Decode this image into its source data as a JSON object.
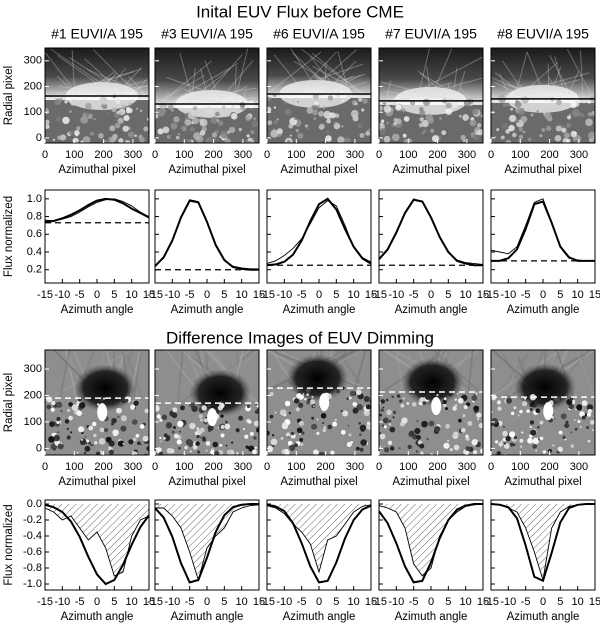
{
  "headings": [
    "Inital EUV Flux before CME",
    "Difference Images of EUV Dimming"
  ],
  "chart_data": [
    {
      "type": "image",
      "title": "#1 EUVI/A 195",
      "xlabel": "Azimuthal pixel",
      "ylabel": "Radial pixel",
      "xlim": [
        0,
        355
      ],
      "ylim": [
        -20,
        350
      ],
      "xticks": [
        0,
        100,
        200,
        300
      ],
      "yticks": [
        0,
        100,
        200,
        300
      ],
      "ytick_labels": true,
      "hline": 163,
      "line_color": "#000000",
      "line_dash": false
    },
    {
      "type": "image",
      "title": "#3 EUVI/A 195",
      "xlabel": "Azimuthal pixel",
      "xlim": [
        0,
        355
      ],
      "ylim": [
        -20,
        350
      ],
      "xticks": [
        0,
        100,
        200,
        300
      ],
      "yticks": [
        0,
        100,
        200,
        300
      ],
      "ytick_labels": false,
      "hline": 132,
      "line_color": "#000000",
      "line_dash": false
    },
    {
      "type": "image",
      "title": "#6 EUVI/A 195",
      "xlabel": "Azimuthal pixel",
      "xlim": [
        0,
        355
      ],
      "ylim": [
        -20,
        350
      ],
      "xticks": [
        0,
        100,
        200,
        300
      ],
      "yticks": [
        0,
        100,
        200,
        300
      ],
      "ytick_labels": false,
      "hline": 171,
      "line_color": "#000000",
      "line_dash": false
    },
    {
      "type": "image",
      "title": "#7 EUVI/A 195",
      "xlabel": "Azimuthal pixel",
      "xlim": [
        0,
        355
      ],
      "ylim": [
        -20,
        350
      ],
      "xticks": [
        0,
        100,
        200,
        300
      ],
      "yticks": [
        0,
        100,
        200,
        300
      ],
      "ytick_labels": false,
      "hline": 144,
      "line_color": "#000000",
      "line_dash": false
    },
    {
      "type": "image",
      "title": "#8 EUVI/A 195",
      "xlabel": "Azimuthal pixel",
      "xlim": [
        0,
        355
      ],
      "ylim": [
        -20,
        350
      ],
      "xticks": [
        0,
        100,
        200,
        300
      ],
      "yticks": [
        0,
        100,
        200,
        300
      ],
      "ytick_labels": false,
      "hline": 152,
      "line_color": "#000000",
      "line_dash": false
    },
    {
      "type": "line",
      "xlabel": "Azimuth angle",
      "ylabel": "Flux normalized",
      "xlim": [
        -15,
        15
      ],
      "ylim": [
        0.05,
        1.1
      ],
      "xticks": [
        -15,
        -10,
        -5,
        0,
        5,
        10,
        15
      ],
      "yticks": [
        0.2,
        0.4,
        0.6,
        0.8,
        {
          "value": 1,
          "label": "1.0"
        }
      ],
      "ytick_labels": true,
      "baseline": 0.73,
      "x": [
        -15,
        -12.5,
        -10,
        -7.5,
        -5,
        -2.5,
        0,
        2.5,
        5,
        7.5,
        10,
        12.5,
        15
      ],
      "series": [
        {
          "color": "#000000",
          "values": [
            0.74,
            0.75,
            0.78,
            0.82,
            0.87,
            0.93,
            0.98,
            1.0,
            0.99,
            0.95,
            0.89,
            0.84,
            0.79
          ]
        },
        {
          "color": "#000000",
          "values": [
            0.76,
            0.75,
            0.77,
            0.8,
            0.85,
            0.91,
            0.96,
            0.99,
            1.0,
            0.97,
            0.92,
            0.85,
            0.8
          ]
        }
      ]
    },
    {
      "type": "line",
      "xlabel": "Azimuth angle",
      "xlim": [
        -15,
        15
      ],
      "ylim": [
        0.05,
        1.1
      ],
      "xticks": [
        -15,
        -10,
        -5,
        0,
        5,
        10,
        15
      ],
      "yticks": [
        0.2,
        0.4,
        0.6,
        0.8,
        {
          "value": 1,
          "label": "1.0"
        }
      ],
      "ytick_labels": false,
      "baseline": 0.2,
      "x": [
        -15,
        -12.5,
        -10,
        -7.5,
        -5,
        -2.5,
        0,
        2.5,
        5,
        7.5,
        10,
        12.5,
        15
      ],
      "series": [
        {
          "color": "#000000",
          "values": [
            0.24,
            0.34,
            0.53,
            0.79,
            0.98,
            0.96,
            0.74,
            0.48,
            0.31,
            0.23,
            0.21,
            0.2,
            0.2
          ]
        },
        {
          "color": "#000000",
          "values": [
            0.25,
            0.33,
            0.52,
            0.8,
            0.99,
            0.97,
            0.75,
            0.47,
            0.3,
            0.24,
            0.22,
            0.21,
            0.21
          ]
        }
      ]
    },
    {
      "type": "line",
      "xlabel": "Azimuth angle",
      "xlim": [
        -15,
        15
      ],
      "ylim": [
        0.05,
        1.1
      ],
      "xticks": [
        -15,
        -10,
        -5,
        0,
        5,
        10,
        15
      ],
      "yticks": [
        0.2,
        0.4,
        0.6,
        0.8,
        {
          "value": 1,
          "label": "1.0"
        }
      ],
      "ytick_labels": false,
      "baseline": 0.25,
      "x": [
        -15,
        -12.5,
        -10,
        -7.5,
        -5,
        -2.5,
        0,
        2.5,
        5,
        7.5,
        10,
        12.5,
        15
      ],
      "series": [
        {
          "color": "#000000",
          "values": [
            0.25,
            0.26,
            0.29,
            0.37,
            0.53,
            0.75,
            0.94,
            1.0,
            0.88,
            0.66,
            0.46,
            0.33,
            0.28
          ]
        },
        {
          "color": "#000000",
          "values": [
            0.27,
            0.3,
            0.36,
            0.44,
            0.55,
            0.72,
            0.9,
            0.98,
            0.92,
            0.7,
            0.45,
            0.32,
            0.26
          ]
        }
      ]
    },
    {
      "type": "line",
      "xlabel": "Azimuth angle",
      "xlim": [
        -15,
        15
      ],
      "ylim": [
        0.05,
        1.1
      ],
      "xticks": [
        -15,
        -10,
        -5,
        0,
        5,
        10,
        15
      ],
      "yticks": [
        0.2,
        0.4,
        0.6,
        0.8,
        {
          "value": 1,
          "label": "1.0"
        }
      ],
      "ytick_labels": false,
      "baseline": 0.25,
      "x": [
        -15,
        -12.5,
        -10,
        -7.5,
        -5,
        -2.5,
        0,
        2.5,
        5,
        7.5,
        10,
        12.5,
        15
      ],
      "series": [
        {
          "color": "#000000",
          "values": [
            0.32,
            0.43,
            0.62,
            0.84,
            0.99,
            0.97,
            0.79,
            0.57,
            0.4,
            0.3,
            0.27,
            0.25,
            0.25
          ]
        },
        {
          "color": "#000000",
          "values": [
            0.31,
            0.42,
            0.61,
            0.85,
            1.0,
            0.97,
            0.8,
            0.56,
            0.39,
            0.31,
            0.28,
            0.27,
            0.26
          ]
        }
      ]
    },
    {
      "type": "line",
      "xlabel": "Azimuth angle",
      "xlim": [
        -15,
        15
      ],
      "ylim": [
        0.05,
        1.1
      ],
      "xticks": [
        -15,
        -10,
        -5,
        0,
        5,
        10,
        15
      ],
      "yticks": [
        0.2,
        0.4,
        0.6,
        0.8,
        {
          "value": 1,
          "label": "1.0"
        }
      ],
      "ytick_labels": false,
      "baseline": 0.3,
      "x": [
        -15,
        -12.5,
        -10,
        -7.5,
        -5,
        -2.5,
        0,
        2.5,
        5,
        7.5,
        10,
        12.5,
        15
      ],
      "series": [
        {
          "color": "#000000",
          "values": [
            0.3,
            0.3,
            0.33,
            0.43,
            0.66,
            0.94,
            0.97,
            0.73,
            0.46,
            0.34,
            0.3,
            0.3,
            0.3
          ]
        },
        {
          "color": "#000000",
          "values": [
            0.42,
            0.4,
            0.38,
            0.46,
            0.7,
            0.96,
            1.0,
            0.74,
            0.45,
            0.33,
            0.31,
            0.3,
            0.3
          ]
        }
      ]
    },
    {
      "type": "image",
      "xlabel": "Azimuthal pixel",
      "ylabel": "Radial pixel",
      "xlim": [
        0,
        355
      ],
      "ylim": [
        -25,
        372
      ],
      "xticks": [
        0,
        100,
        200,
        300
      ],
      "yticks": [
        0,
        100,
        200,
        300
      ],
      "ytick_labels": true,
      "hline": 190,
      "line_color": "#ffffff",
      "line_dash": true
    },
    {
      "type": "image",
      "xlabel": "Azimuthal pixel",
      "xlim": [
        0,
        355
      ],
      "ylim": [
        -25,
        372
      ],
      "xticks": [
        0,
        100,
        200,
        300
      ],
      "yticks": [
        0,
        100,
        200,
        300
      ],
      "ytick_labels": false,
      "hline": 171,
      "line_color": "#ffffff",
      "line_dash": true
    },
    {
      "type": "image",
      "xlabel": "Azimuthal pixel",
      "xlim": [
        0,
        355
      ],
      "ylim": [
        -25,
        372
      ],
      "xticks": [
        0,
        100,
        200,
        300
      ],
      "yticks": [
        0,
        100,
        200,
        300
      ],
      "ytick_labels": false,
      "hline": 228,
      "line_color": "#ffffff",
      "line_dash": true
    },
    {
      "type": "image",
      "xlabel": "Azimuthal pixel",
      "xlim": [
        0,
        355
      ],
      "ylim": [
        -25,
        372
      ],
      "xticks": [
        0,
        100,
        200,
        300
      ],
      "yticks": [
        0,
        100,
        200,
        300
      ],
      "ytick_labels": false,
      "hline": 213,
      "line_color": "#ffffff",
      "line_dash": true
    },
    {
      "type": "image",
      "xlabel": "Azimuthal pixel",
      "xlim": [
        0,
        355
      ],
      "ylim": [
        -25,
        372
      ],
      "xticks": [
        0,
        100,
        200,
        300
      ],
      "yticks": [
        0,
        100,
        200,
        300
      ],
      "ytick_labels": false,
      "hline": 194,
      "line_color": "#ffffff",
      "line_dash": true
    },
    {
      "type": "line",
      "xlabel": "Azimuth angle",
      "ylabel": "Flux normalized",
      "xlim": [
        -15,
        15
      ],
      "ylim": [
        -1.075,
        0.05
      ],
      "xticks": [
        -15,
        -10,
        -5,
        0,
        5,
        10,
        15
      ],
      "yticks": [
        {
          "value": 0,
          "label": "0.0"
        },
        -0.2,
        -0.4,
        -0.6,
        -0.8,
        {
          "value": -1,
          "label": "-1.0"
        }
      ],
      "ytick_labels": true,
      "x": [
        -15,
        -12.5,
        -10,
        -7.5,
        -5,
        -2.5,
        0,
        2.5,
        5,
        7.5,
        10,
        12.5,
        15
      ],
      "series": [
        {
          "color": "#000000",
          "values": [
            -0.01,
            -0.04,
            -0.1,
            -0.22,
            -0.41,
            -0.66,
            -0.88,
            -1.0,
            -0.95,
            -0.76,
            -0.51,
            -0.29,
            -0.14
          ]
        },
        {
          "color": "#000000",
          "hatched": true,
          "values": [
            -0.05,
            -0.1,
            -0.2,
            -0.15,
            -0.3,
            -0.45,
            -0.35,
            -0.55,
            -0.9,
            -0.85,
            -0.4,
            -0.2,
            -0.15
          ]
        }
      ]
    },
    {
      "type": "line",
      "xlabel": "Azimuth angle",
      "xlim": [
        -15,
        15
      ],
      "ylim": [
        -1.075,
        0.05
      ],
      "xticks": [
        -15,
        -10,
        -5,
        0,
        5,
        10,
        15
      ],
      "yticks": [
        {
          "value": 0,
          "label": "0.0"
        },
        -0.2,
        -0.4,
        -0.6,
        -0.8,
        {
          "value": -1,
          "label": "-1.0"
        }
      ],
      "ytick_labels": false,
      "x": [
        -15,
        -12.5,
        -10,
        -7.5,
        -5,
        -2.5,
        0,
        2.5,
        5,
        7.5,
        10,
        12.5,
        15
      ],
      "series": [
        {
          "color": "#000000",
          "values": [
            -0.05,
            -0.17,
            -0.41,
            -0.74,
            -0.98,
            -0.95,
            -0.67,
            -0.35,
            -0.14,
            -0.04,
            -0.01,
            0,
            0
          ]
        },
        {
          "color": "#000000",
          "hatched": true,
          "values": [
            -0.05,
            -0.05,
            -0.15,
            -0.3,
            -0.6,
            -0.95,
            -0.55,
            -0.4,
            -0.3,
            -0.1,
            -0.05,
            -0.02,
            -0.01
          ]
        }
      ]
    },
    {
      "type": "line",
      "xlabel": "Azimuth angle",
      "xlim": [
        -15,
        15
      ],
      "ylim": [
        -1.075,
        0.05
      ],
      "xticks": [
        -15,
        -10,
        -5,
        0,
        5,
        10,
        15
      ],
      "yticks": [
        {
          "value": 0,
          "label": "0.0"
        },
        -0.2,
        -0.4,
        -0.6,
        -0.8,
        {
          "value": -1,
          "label": "-1.0"
        }
      ],
      "ytick_labels": false,
      "x": [
        -15,
        -12.5,
        -10,
        -7.5,
        -5,
        -2.5,
        0,
        2.5,
        5,
        7.5,
        10,
        12.5,
        15
      ],
      "series": [
        {
          "color": "#000000",
          "values": [
            -0.01,
            -0.03,
            -0.09,
            -0.24,
            -0.49,
            -0.78,
            -0.98,
            -0.96,
            -0.73,
            -0.43,
            -0.2,
            -0.07,
            -0.02
          ]
        },
        {
          "color": "#000000",
          "hatched": true,
          "values": [
            -0.02,
            -0.05,
            -0.12,
            -0.25,
            -0.35,
            -0.5,
            -0.85,
            -0.45,
            -0.4,
            -0.25,
            -0.1,
            -0.03,
            -0.01
          ]
        }
      ]
    },
    {
      "type": "line",
      "xlabel": "Azimuth angle",
      "xlim": [
        -15,
        15
      ],
      "ylim": [
        -1.075,
        0.05
      ],
      "xticks": [
        -15,
        -10,
        -5,
        0,
        5,
        10,
        15
      ],
      "yticks": [
        {
          "value": 0,
          "label": "0.0"
        },
        -0.2,
        -0.4,
        -0.6,
        -0.8,
        {
          "value": -1,
          "label": "-1.0"
        }
      ],
      "ytick_labels": false,
      "x": [
        -15,
        -12.5,
        -10,
        -7.5,
        -5,
        -2.5,
        0,
        2.5,
        5,
        7.5,
        10,
        12.5,
        15
      ],
      "series": [
        {
          "color": "#000000",
          "values": [
            -0.09,
            -0.24,
            -0.49,
            -0.78,
            -0.98,
            -0.96,
            -0.73,
            -0.43,
            -0.2,
            -0.07,
            -0.02,
            0,
            0
          ]
        },
        {
          "color": "#000000",
          "hatched": true,
          "values": [
            -0.02,
            -0.05,
            -0.1,
            -0.3,
            -0.75,
            -0.9,
            -0.8,
            -0.4,
            -0.2,
            -0.1,
            -0.03,
            -0.01,
            0
          ]
        }
      ]
    },
    {
      "type": "line",
      "xlabel": "Azimuth angle",
      "xlim": [
        -15,
        15
      ],
      "ylim": [
        -1.075,
        0.05
      ],
      "xticks": [
        -15,
        -10,
        -5,
        0,
        5,
        10,
        15
      ],
      "yticks": [
        {
          "value": 0,
          "label": "0.0"
        },
        -0.2,
        -0.4,
        -0.6,
        -0.8,
        {
          "value": -1,
          "label": "-1.0"
        }
      ],
      "ytick_labels": false,
      "x": [
        -15,
        -12.5,
        -10,
        -7.5,
        -5,
        -2.5,
        0,
        2.5,
        5,
        7.5,
        10,
        12.5,
        15
      ],
      "series": [
        {
          "color": "#000000",
          "values": [
            0,
            -0.01,
            -0.04,
            -0.18,
            -0.52,
            -0.91,
            -0.96,
            -0.61,
            -0.23,
            -0.05,
            -0.01,
            0,
            0
          ]
        },
        {
          "color": "#000000",
          "hatched": true,
          "values": [
            0,
            -0.01,
            -0.05,
            -0.1,
            -0.3,
            -0.6,
            -0.95,
            -0.3,
            -0.1,
            -0.03,
            -0.01,
            0,
            0
          ]
        }
      ]
    }
  ]
}
